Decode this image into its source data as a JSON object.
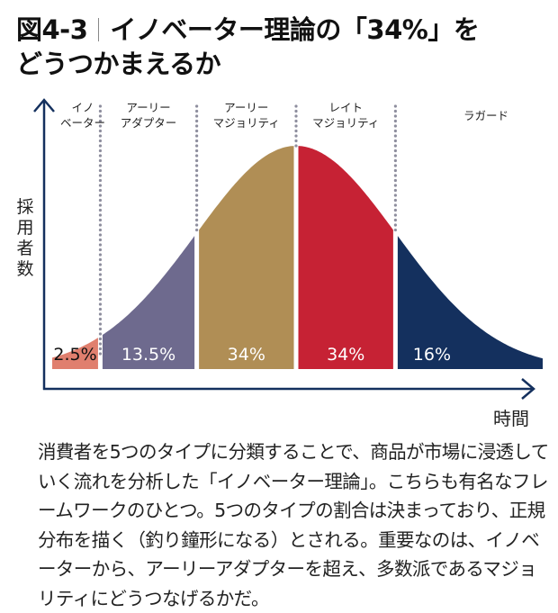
{
  "title": {
    "figure_label": "図4-3",
    "line1": "イノベーター理論の「34%」を",
    "line2": "どうつかまえるか"
  },
  "chart_data": {
    "type": "area",
    "title": "イノベーター理論の「34%」をどうつかまえるか",
    "xlabel": "時間",
    "ylabel": "採用者数",
    "distribution": "normal (bell curve)",
    "grid": false,
    "segments": [
      {
        "name": "イノベーター",
        "label_lines": [
          "イノ",
          "ベーター"
        ],
        "value": 2.5,
        "value_label": "2.5%",
        "color": "#E07F6E",
        "text_color": "#111111"
      },
      {
        "name": "アーリーアダプター",
        "label_lines": [
          "アーリー",
          "アダプター"
        ],
        "value": 13.5,
        "value_label": "13.5%",
        "color": "#6E6A8E",
        "text_color": "#ffffff"
      },
      {
        "name": "アーリーマジョリティ",
        "label_lines": [
          "アーリー",
          "マジョリティ"
        ],
        "value": 34,
        "value_label": "34%",
        "color": "#B08E55",
        "text_color": "#ffffff"
      },
      {
        "name": "レイトマジョリティ",
        "label_lines": [
          "レイト",
          "マジョリティ"
        ],
        "value": 34,
        "value_label": "34%",
        "color": "#C62234",
        "text_color": "#ffffff"
      },
      {
        "name": "ラガード",
        "label_lines": [
          "ラガード"
        ],
        "value": 16,
        "value_label": "16%",
        "color": "#14305E",
        "text_color": "#ffffff"
      }
    ],
    "axis_color": "#14305E",
    "divider_color": "#8E8E9E"
  },
  "description": "消費者を5つのタイプに分類することで、商品が市場に浸透していく流れを分析した「イノベーター理論」。こちらも有名なフレームワークのひとつ。5つのタイプの割合は決まっており、正規分布を描く（釣り鐘形になる）とされる。重要なのは、イノベーターから、アーリーアダプターを超え、多数派であるマジョリティにどうつなげるかだ。"
}
